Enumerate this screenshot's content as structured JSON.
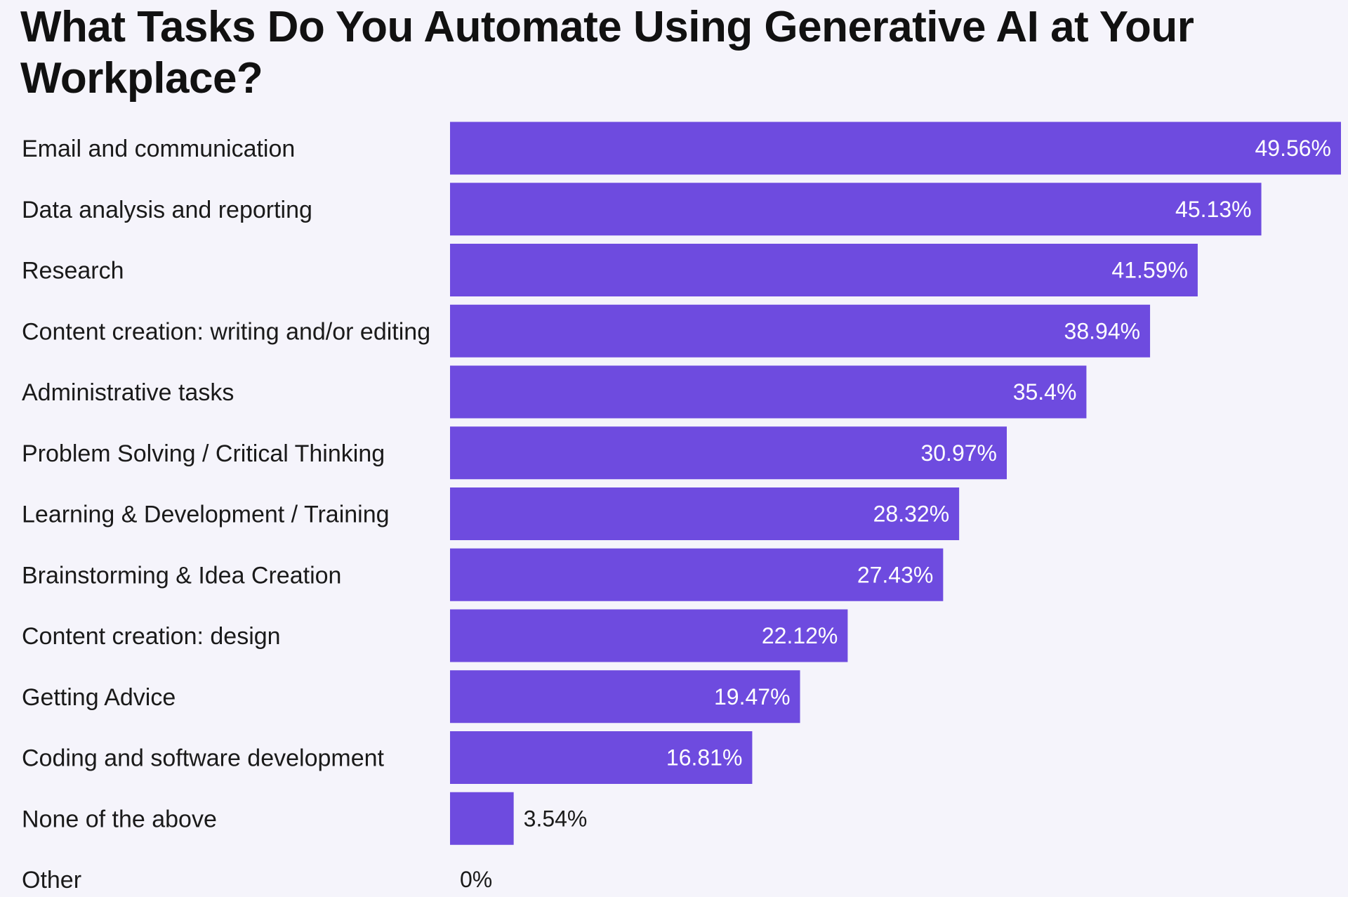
{
  "colors": {
    "bar": "#6e4bdf",
    "background": "#f5f4fb",
    "label_inside": "#ffffff",
    "label_outside": "#1a1a1a"
  },
  "chart_data": {
    "type": "bar",
    "orientation": "horizontal",
    "title": "What Tasks Do You Automate Using Generative AI at Your Workplace?",
    "xlabel": "",
    "ylabel": "",
    "xlim": [
      0,
      49.56
    ],
    "grid": false,
    "legend": "none",
    "categories": [
      "Email and communication",
      "Data analysis and reporting",
      "Research",
      "Content creation: writing and/or editing",
      "Administrative tasks",
      "Problem Solving / Critical Thinking",
      "Learning & Development / Training",
      "Brainstorming & Idea Creation",
      "Content creation: design",
      "Getting Advice",
      "Coding and software development",
      "None of the above",
      "Other"
    ],
    "values": [
      49.56,
      45.13,
      41.59,
      38.94,
      35.4,
      30.97,
      28.32,
      27.43,
      22.12,
      19.47,
      16.81,
      3.54,
      0
    ],
    "data_labels": [
      "49.56%",
      "45.13%",
      "41.59%",
      "38.94%",
      "35.4%",
      "30.97%",
      "28.32%",
      "27.43%",
      "22.12%",
      "19.47%",
      "16.81%",
      "3.54%",
      "0%"
    ]
  }
}
